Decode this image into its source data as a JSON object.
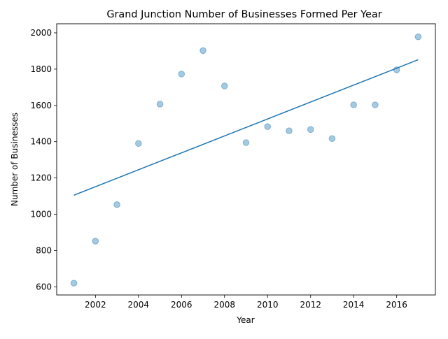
{
  "chart_data": {
    "type": "scatter",
    "title": "Grand Junction Number of Businesses Formed Per Year",
    "xlabel": "Year",
    "ylabel": "Number of Businesses",
    "xlim": [
      2000.2,
      2017.8
    ],
    "ylim": [
      555,
      2050
    ],
    "xticks": [
      2002,
      2004,
      2006,
      2008,
      2010,
      2012,
      2014,
      2016
    ],
    "yticks": [
      600,
      800,
      1000,
      1200,
      1400,
      1600,
      1800,
      2000
    ],
    "grid": false,
    "points": {
      "x": [
        2001,
        2002,
        2003,
        2004,
        2005,
        2006,
        2007,
        2008,
        2009,
        2010,
        2011,
        2012,
        2013,
        2014,
        2015,
        2016,
        2017
      ],
      "y": [
        620,
        852,
        1053,
        1390,
        1607,
        1773,
        1902,
        1707,
        1395,
        1483,
        1460,
        1467,
        1417,
        1603,
        1603,
        1796,
        1978
      ]
    },
    "trendline": {
      "x": [
        2001,
        2017
      ],
      "y": [
        1105,
        1852
      ]
    },
    "colors": {
      "points": "#1f77b4",
      "trendline": "#1f77b4"
    }
  }
}
